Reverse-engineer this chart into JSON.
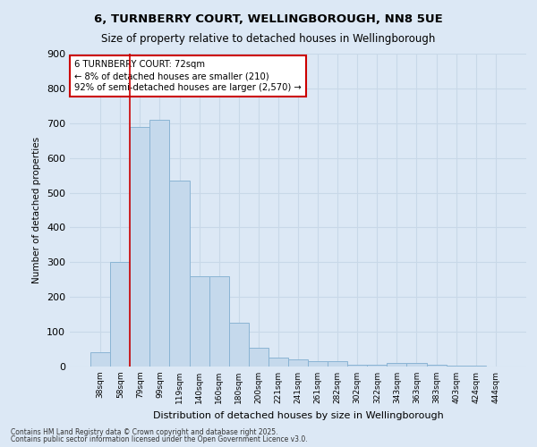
{
  "title_line1": "6, TURNBERRY COURT, WELLINGBOROUGH, NN8 5UE",
  "title_line2": "Size of property relative to detached houses in Wellingborough",
  "xlabel": "Distribution of detached houses by size in Wellingborough",
  "ylabel": "Number of detached properties",
  "categories": [
    "38sqm",
    "58sqm",
    "79sqm",
    "99sqm",
    "119sqm",
    "140sqm",
    "160sqm",
    "180sqm",
    "200sqm",
    "221sqm",
    "241sqm",
    "261sqm",
    "282sqm",
    "302sqm",
    "322sqm",
    "343sqm",
    "363sqm",
    "383sqm",
    "403sqm",
    "424sqm",
    "444sqm"
  ],
  "values": [
    40,
    300,
    690,
    710,
    535,
    260,
    260,
    125,
    55,
    25,
    20,
    15,
    15,
    5,
    5,
    10,
    10,
    5,
    3,
    2,
    1
  ],
  "bar_color": "#c5d9ec",
  "bar_edge_color": "#8ab4d4",
  "grid_color": "#c8d8e8",
  "background_color": "#dce8f5",
  "vline_color": "#cc0000",
  "annotation_text": "6 TURNBERRY COURT: 72sqm\n← 8% of detached houses are smaller (210)\n92% of semi-detached houses are larger (2,570) →",
  "annotation_box_color": "#ffffff",
  "annotation_box_edge": "#cc0000",
  "ylim": [
    0,
    900
  ],
  "yticks": [
    0,
    100,
    200,
    300,
    400,
    500,
    600,
    700,
    800,
    900
  ],
  "footer_line1": "Contains HM Land Registry data © Crown copyright and database right 2025.",
  "footer_line2": "Contains public sector information licensed under the Open Government Licence v3.0."
}
